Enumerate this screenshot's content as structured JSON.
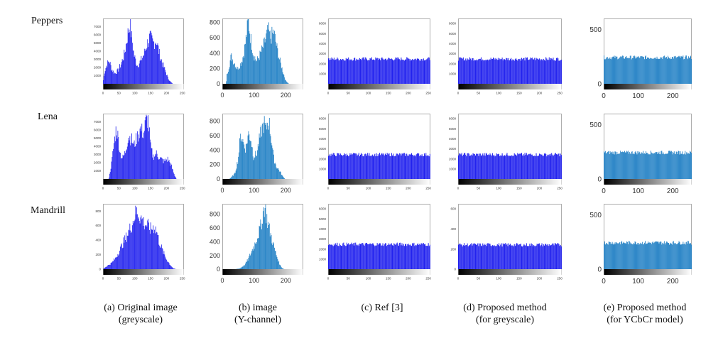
{
  "rows": [
    {
      "label": "Peppers"
    },
    {
      "label": "Lena"
    },
    {
      "label": "Mandrill"
    }
  ],
  "captions": [
    {
      "line1": "(a) Original image",
      "line2": "(greyscale)"
    },
    {
      "line1": "(b) image",
      "line2": "(Y-channel)"
    },
    {
      "line1": "(c) Ref [3]",
      "line2": ""
    },
    {
      "line1": "(d) Proposed method",
      "line2": "(for greyscale)"
    },
    {
      "line1": "(e) Proposed method",
      "line2": "(for YCbCr model)"
    }
  ],
  "colors": {
    "bar_blue": "#2222ee",
    "bar_steel": "#1f7fc4",
    "frame": "#999999",
    "text": "#111111"
  },
  "chart_data": [
    {
      "id": "peppers-a",
      "type": "bar",
      "title": "",
      "xlabel": "",
      "ylabel": "",
      "xlim": [
        0,
        255
      ],
      "xticks": [
        "0",
        "50",
        "100",
        "150",
        "200",
        "250"
      ],
      "ylim": [
        0,
        8000
      ],
      "yticks": [
        "1000",
        "2000",
        "3000",
        "4000",
        "5000",
        "6000",
        "7000"
      ],
      "profile": [
        [
          0,
          200
        ],
        [
          5,
          1500
        ],
        [
          12,
          2400
        ],
        [
          20,
          2900
        ],
        [
          28,
          1800
        ],
        [
          38,
          1300
        ],
        [
          48,
          1700
        ],
        [
          58,
          2600
        ],
        [
          68,
          3800
        ],
        [
          78,
          6200
        ],
        [
          85,
          7700
        ],
        [
          90,
          6000
        ],
        [
          98,
          3600
        ],
        [
          108,
          2300
        ],
        [
          118,
          2800
        ],
        [
          128,
          3600
        ],
        [
          138,
          4900
        ],
        [
          148,
          5900
        ],
        [
          158,
          5100
        ],
        [
          168,
          5500
        ],
        [
          178,
          3800
        ],
        [
          188,
          2500
        ],
        [
          198,
          1500
        ],
        [
          205,
          700
        ],
        [
          212,
          300
        ],
        [
          220,
          0
        ],
        [
          255,
          0
        ]
      ]
    },
    {
      "id": "peppers-b",
      "type": "bar",
      "title": "",
      "xlabel": "",
      "ylabel": "",
      "xlim": [
        0,
        255
      ],
      "xticks": [
        "0",
        "100",
        "200"
      ],
      "ylim": [
        0,
        850
      ],
      "yticks": [
        "0",
        "200",
        "400",
        "600",
        "800"
      ],
      "profile": [
        [
          0,
          0
        ],
        [
          12,
          0
        ],
        [
          15,
          120
        ],
        [
          22,
          250
        ],
        [
          28,
          370
        ],
        [
          38,
          280
        ],
        [
          48,
          200
        ],
        [
          58,
          270
        ],
        [
          68,
          400
        ],
        [
          76,
          640
        ],
        [
          82,
          850
        ],
        [
          90,
          600
        ],
        [
          98,
          400
        ],
        [
          108,
          300
        ],
        [
          118,
          380
        ],
        [
          128,
          480
        ],
        [
          138,
          620
        ],
        [
          145,
          720
        ],
        [
          152,
          610
        ],
        [
          162,
          700
        ],
        [
          172,
          480
        ],
        [
          182,
          300
        ],
        [
          192,
          150
        ],
        [
          200,
          40
        ],
        [
          210,
          0
        ],
        [
          255,
          0
        ]
      ]
    },
    {
      "id": "peppers-c",
      "type": "bar",
      "title": "",
      "xlabel": "",
      "ylabel": "",
      "xlim": [
        0,
        255
      ],
      "xticks": [
        "0",
        "50",
        "100",
        "150",
        "200",
        "250"
      ],
      "ylim": [
        0,
        6500
      ],
      "yticks": [
        "1000",
        "2000",
        "3000",
        "4000",
        "5000",
        "6000"
      ],
      "flat": 2550
    },
    {
      "id": "peppers-d",
      "type": "bar",
      "title": "",
      "xlabel": "",
      "ylabel": "",
      "xlim": [
        0,
        255
      ],
      "xticks": [
        "0",
        "50",
        "100",
        "150",
        "200",
        "250"
      ],
      "ylim": [
        0,
        6500
      ],
      "yticks": [
        "1000",
        "2000",
        "3000",
        "4000",
        "5000",
        "6000"
      ],
      "flat": 2550
    },
    {
      "id": "peppers-e",
      "type": "bar",
      "title": "",
      "xlabel": "",
      "ylabel": "",
      "xlim": [
        0,
        255
      ],
      "xticks": [
        "0",
        "100",
        "200"
      ],
      "ylim": [
        0,
        600
      ],
      "yticks": [
        "0",
        "500"
      ],
      "flat": 250
    },
    {
      "id": "lena-a",
      "type": "bar",
      "title": "",
      "xlabel": "",
      "ylabel": "",
      "xlim": [
        0,
        255
      ],
      "xticks": [
        "0",
        "50",
        "100",
        "150",
        "200",
        "250"
      ],
      "ylim": [
        0,
        8000
      ],
      "yticks": [
        "1000",
        "2000",
        "3000",
        "4000",
        "5000",
        "6000",
        "7000"
      ],
      "profile": [
        [
          0,
          0
        ],
        [
          18,
          0
        ],
        [
          22,
          800
        ],
        [
          28,
          2200
        ],
        [
          35,
          4500
        ],
        [
          42,
          6400
        ],
        [
          48,
          5200
        ],
        [
          55,
          3100
        ],
        [
          62,
          2600
        ],
        [
          70,
          3300
        ],
        [
          80,
          5400
        ],
        [
          90,
          5000
        ],
        [
          98,
          4200
        ],
        [
          108,
          5300
        ],
        [
          118,
          6300
        ],
        [
          128,
          5700
        ],
        [
          135,
          7200
        ],
        [
          142,
          7600
        ],
        [
          150,
          4000
        ],
        [
          158,
          2800
        ],
        [
          168,
          3200
        ],
        [
          180,
          2600
        ],
        [
          192,
          2200
        ],
        [
          205,
          2500
        ],
        [
          215,
          1700
        ],
        [
          225,
          500
        ],
        [
          232,
          0
        ],
        [
          255,
          0
        ]
      ]
    },
    {
      "id": "lena-b",
      "type": "bar",
      "title": "",
      "xlabel": "",
      "ylabel": "",
      "xlim": [
        0,
        255
      ],
      "xticks": [
        "0",
        "100",
        "200"
      ],
      "ylim": [
        0,
        900
      ],
      "yticks": [
        "0",
        "200",
        "400",
        "600",
        "800"
      ],
      "profile": [
        [
          0,
          0
        ],
        [
          22,
          0
        ],
        [
          28,
          20
        ],
        [
          40,
          80
        ],
        [
          50,
          280
        ],
        [
          58,
          640
        ],
        [
          66,
          520
        ],
        [
          74,
          430
        ],
        [
          82,
          640
        ],
        [
          90,
          580
        ],
        [
          98,
          320
        ],
        [
          108,
          350
        ],
        [
          118,
          580
        ],
        [
          126,
          720
        ],
        [
          132,
          790
        ],
        [
          138,
          680
        ],
        [
          145,
          850
        ],
        [
          150,
          720
        ],
        [
          156,
          520
        ],
        [
          162,
          300
        ],
        [
          170,
          180
        ],
        [
          180,
          120
        ],
        [
          190,
          40
        ],
        [
          198,
          0
        ],
        [
          255,
          0
        ]
      ]
    },
    {
      "id": "lena-c",
      "type": "bar",
      "title": "",
      "xlabel": "",
      "ylabel": "",
      "xlim": [
        0,
        255
      ],
      "xticks": [
        "0",
        "50",
        "100",
        "150",
        "200",
        "250"
      ],
      "ylim": [
        0,
        6500
      ],
      "yticks": [
        "1000",
        "2000",
        "3000",
        "4000",
        "5000",
        "6000"
      ],
      "flat": 2500
    },
    {
      "id": "lena-d",
      "type": "bar",
      "title": "",
      "xlabel": "",
      "ylabel": "",
      "xlim": [
        0,
        255
      ],
      "xticks": [
        "0",
        "50",
        "100",
        "150",
        "200",
        "250"
      ],
      "ylim": [
        0,
        6500
      ],
      "yticks": [
        "1000",
        "2000",
        "3000",
        "4000",
        "5000",
        "6000"
      ],
      "flat": 2500
    },
    {
      "id": "lena-e",
      "type": "bar",
      "title": "",
      "xlabel": "",
      "ylabel": "",
      "xlim": [
        0,
        255
      ],
      "xticks": [
        "0",
        "100",
        "200"
      ],
      "ylim": [
        0,
        600
      ],
      "yticks": [
        "0",
        "500"
      ],
      "flat": 250
    },
    {
      "id": "mandrill-a",
      "type": "bar",
      "title": "",
      "xlabel": "",
      "ylabel": "",
      "xlim": [
        0,
        255
      ],
      "xticks": [
        "0",
        "50",
        "100",
        "150",
        "200",
        "250"
      ],
      "ylim": [
        0,
        900
      ],
      "yticks": [
        "0",
        "200",
        "400",
        "600",
        "800"
      ],
      "profile": [
        [
          0,
          0
        ],
        [
          5,
          20
        ],
        [
          15,
          50
        ],
        [
          28,
          90
        ],
        [
          40,
          160
        ],
        [
          52,
          260
        ],
        [
          62,
          360
        ],
        [
          72,
          440
        ],
        [
          82,
          540
        ],
        [
          92,
          640
        ],
        [
          100,
          760
        ],
        [
          106,
          810
        ],
        [
          112,
          790
        ],
        [
          120,
          720
        ],
        [
          130,
          650
        ],
        [
          140,
          620
        ],
        [
          150,
          560
        ],
        [
          160,
          600
        ],
        [
          168,
          560
        ],
        [
          176,
          400
        ],
        [
          188,
          260
        ],
        [
          200,
          140
        ],
        [
          212,
          60
        ],
        [
          222,
          10
        ],
        [
          230,
          0
        ],
        [
          255,
          0
        ]
      ]
    },
    {
      "id": "mandrill-b",
      "type": "bar",
      "title": "",
      "xlabel": "",
      "ylabel": "",
      "xlim": [
        0,
        255
      ],
      "xticks": [
        "0",
        "100",
        "200"
      ],
      "ylim": [
        0,
        950
      ],
      "yticks": [
        "0",
        "200",
        "400",
        "600",
        "800"
      ],
      "profile": [
        [
          0,
          0
        ],
        [
          40,
          0
        ],
        [
          55,
          10
        ],
        [
          70,
          60
        ],
        [
          82,
          150
        ],
        [
          92,
          260
        ],
        [
          102,
          370
        ],
        [
          110,
          480
        ],
        [
          118,
          580
        ],
        [
          124,
          700
        ],
        [
          128,
          820
        ],
        [
          132,
          940
        ],
        [
          136,
          880
        ],
        [
          142,
          720
        ],
        [
          150,
          560
        ],
        [
          158,
          420
        ],
        [
          166,
          280
        ],
        [
          174,
          160
        ],
        [
          182,
          60
        ],
        [
          190,
          10
        ],
        [
          196,
          0
        ],
        [
          255,
          0
        ]
      ]
    },
    {
      "id": "mandrill-c",
      "type": "bar",
      "title": "",
      "xlabel": "",
      "ylabel": "",
      "xlim": [
        0,
        255
      ],
      "xticks": [
        "0",
        "50",
        "100",
        "150",
        "200",
        "250"
      ],
      "ylim": [
        0,
        6500
      ],
      "yticks": [
        "1000",
        "2000",
        "3000",
        "4000",
        "5000",
        "6000"
      ],
      "flat": 2550
    },
    {
      "id": "mandrill-d",
      "type": "bar",
      "title": "",
      "xlabel": "",
      "ylabel": "",
      "xlim": [
        0,
        255
      ],
      "xticks": [
        "0",
        "50",
        "100",
        "150",
        "200",
        "250"
      ],
      "ylim": [
        0,
        650
      ],
      "yticks": [
        "0",
        "200",
        "400",
        "600"
      ],
      "flat": 250
    },
    {
      "id": "mandrill-e",
      "type": "bar",
      "title": "",
      "xlabel": "",
      "ylabel": "",
      "xlim": [
        0,
        255
      ],
      "xticks": [
        "0",
        "100",
        "200"
      ],
      "ylim": [
        0,
        600
      ],
      "yticks": [
        "0",
        "500"
      ],
      "flat": 250
    }
  ]
}
